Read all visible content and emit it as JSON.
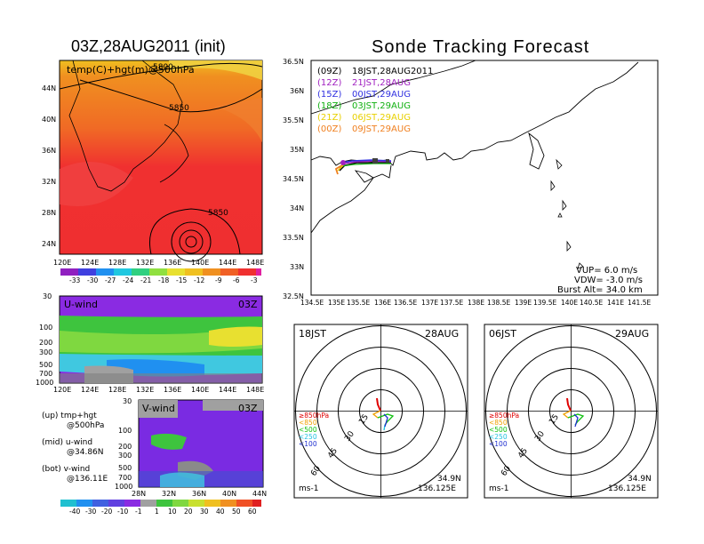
{
  "left_title": "03Z,28AUG2011 (init)",
  "right_title": "Sonde Tracking Forecast",
  "map_panel": {
    "label": "temp(C)+hgt(m)@500hPa",
    "contour_labels": [
      "5850",
      "5850",
      "5850"
    ],
    "top_contour_label": "5800",
    "x_ticks": [
      "120E",
      "124E",
      "128E",
      "132E",
      "136E",
      "140E",
      "144E",
      "148E"
    ],
    "y_ticks": [
      "44N",
      "40N",
      "36N",
      "32N",
      "28N",
      "24N"
    ],
    "colorbar_labels": [
      "-33",
      "-30",
      "-27",
      "-24",
      "-21",
      "-18",
      "-15",
      "-12",
      "-9",
      "-6",
      "-3"
    ]
  },
  "u_panel": {
    "label": "U-wind",
    "time": "03Z",
    "y_ticks": [
      "30",
      "100",
      "200",
      "300",
      "500",
      "700",
      "1000"
    ],
    "x_ticks": [
      "120E",
      "124E",
      "128E",
      "132E",
      "136E",
      "140E",
      "144E",
      "148E"
    ]
  },
  "v_panel": {
    "label": "V-wind",
    "time": "03Z",
    "y_ticks": [
      "30",
      "100",
      "200",
      "300",
      "500",
      "700",
      "1000"
    ],
    "x_ticks": [
      "28N",
      "32N",
      "36N",
      "40N",
      "44N"
    ]
  },
  "notes": {
    "up_1": "(up)  tmp+hgt",
    "up_2": "@500hPa",
    "mid_1": "(mid)  u-wind",
    "mid_2": "@34.86N",
    "bot_1": "(bot)  v-wind",
    "bot_2": "@136.11E"
  },
  "wind_colorbar_labels": [
    "-40",
    "-30",
    "-20",
    "-10",
    "-1",
    "1",
    "10",
    "20",
    "30",
    "40",
    "50",
    "60"
  ],
  "track_map": {
    "x_ticks": [
      "134.5E",
      "135E",
      "135.5E",
      "136E",
      "136.5E",
      "137E",
      "137.5E",
      "138E",
      "138.5E",
      "139E",
      "139.5E",
      "140E",
      "140.5E",
      "141E",
      "141.5E"
    ],
    "y_ticks": [
      "36.5N",
      "36N",
      "35.5N",
      "35N",
      "34.5N",
      "34N",
      "33.5N",
      "33N",
      "32.5N"
    ],
    "legend": [
      {
        "run": "(09Z)",
        "text": "18JST,28AUG2011",
        "color": "#000000"
      },
      {
        "run": "(12Z)",
        "text": "21JST,28AUG",
        "color": "#a020c0"
      },
      {
        "run": "(15Z)",
        "text": "00JST,29AUG",
        "color": "#3030e0"
      },
      {
        "run": "(18Z)",
        "text": "03JST,29AUG",
        "color": "#10b010"
      },
      {
        "run": "(21Z)",
        "text": "06JST,29AUG",
        "color": "#e8d000"
      },
      {
        "run": "(00Z)",
        "text": "09JST,29AUG",
        "color": "#f08020"
      }
    ],
    "vup": "VUP=  6.0  m/s",
    "vdw": "VDW=  -3.0  m/s",
    "burst": "Burst Alt=  34.0  km"
  },
  "polar_left": {
    "time": "18JST",
    "date": "28AUG",
    "ring_labels": [
      "15",
      "30",
      "45",
      "60"
    ],
    "pressure_labels": [
      "≥850hPa",
      "<850",
      "<500",
      "<250",
      "<100"
    ],
    "unit": "ms-1",
    "lat": "34.9N",
    "lon": "136.125E"
  },
  "polar_right": {
    "time": "06JST",
    "date": "29AUG",
    "ring_labels": [
      "15",
      "30",
      "45",
      "60"
    ],
    "pressure_labels": [
      "≥850hPa",
      "<850",
      "<500",
      "<250",
      "<100"
    ],
    "unit": "ms-1",
    "lat": "34.9N",
    "lon": "136.125E"
  },
  "colors": {
    "pressure": [
      "#e00000",
      "#f0a000",
      "#10c010",
      "#20c0e0",
      "#2030d0"
    ]
  }
}
